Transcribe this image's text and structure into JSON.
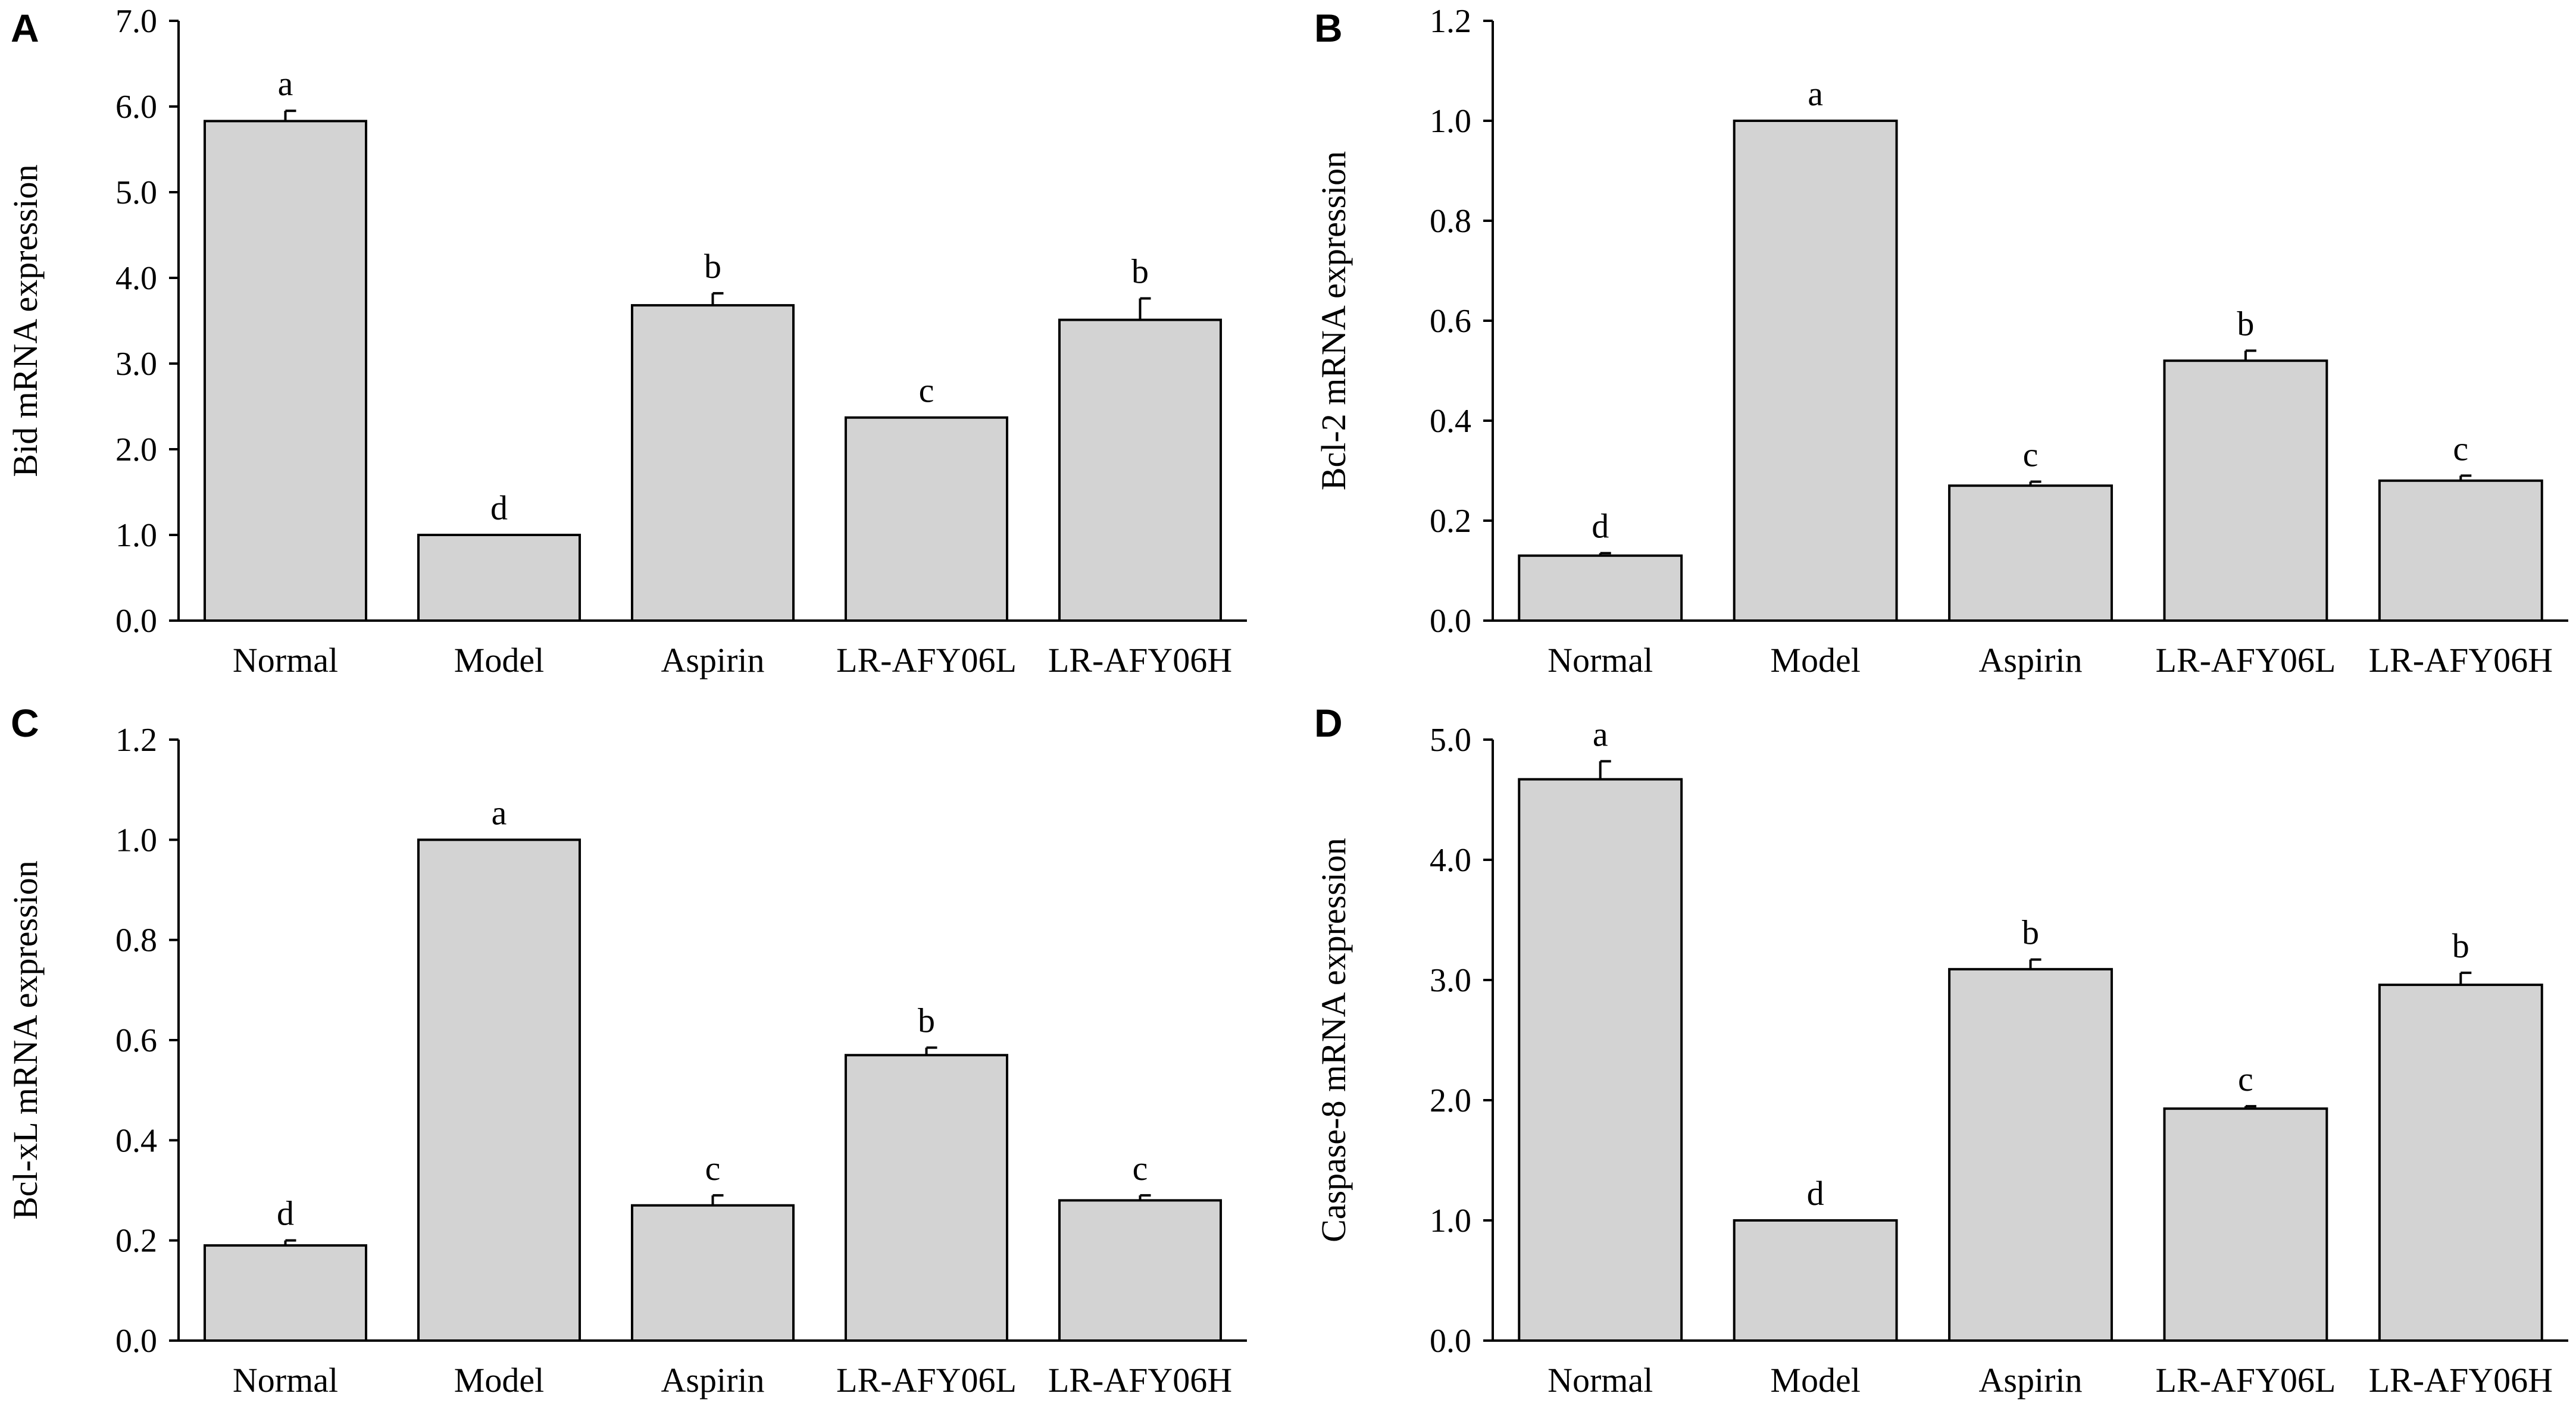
{
  "chart_data": [
    {
      "panel": "A",
      "type": "bar",
      "categories": [
        "Normal",
        "Model",
        "Aspirin",
        "LR-AFY06L",
        "LR-AFY06H"
      ],
      "values": [
        5.83,
        1.0,
        3.68,
        2.37,
        3.51
      ],
      "errors": [
        0.12,
        0.0,
        0.14,
        0.0,
        0.25
      ],
      "letters": [
        "a",
        "d",
        "b",
        "c",
        "b"
      ],
      "ylabel": "Bid mRNA expression",
      "ylim": [
        0,
        7
      ],
      "yticks": [
        "0.0",
        "1.0",
        "2.0",
        "3.0",
        "4.0",
        "5.0",
        "6.0",
        "7.0"
      ]
    },
    {
      "panel": "B",
      "type": "bar",
      "categories": [
        "Normal",
        "Model",
        "Aspirin",
        "LR-AFY06L",
        "LR-AFY06H"
      ],
      "values": [
        0.13,
        1.0,
        0.27,
        0.52,
        0.28
      ],
      "errors": [
        0.005,
        0.0,
        0.008,
        0.02,
        0.01
      ],
      "letters": [
        "d",
        "a",
        "c",
        "b",
        "c"
      ],
      "ylabel": "Bcl-2 mRNA expression",
      "ylim": [
        0,
        1.2
      ],
      "yticks": [
        "0.0",
        "0.2",
        "0.4",
        "0.6",
        "0.8",
        "1.0",
        "1.2"
      ]
    },
    {
      "panel": "C",
      "type": "bar",
      "categories": [
        "Normal",
        "Model",
        "Aspirin",
        "LR-AFY06L",
        "LR-AFY06H"
      ],
      "values": [
        0.19,
        1.0,
        0.27,
        0.57,
        0.28
      ],
      "errors": [
        0.01,
        0.0,
        0.02,
        0.015,
        0.01
      ],
      "letters": [
        "d",
        "a",
        "c",
        "b",
        "c"
      ],
      "ylabel": "Bcl-xL mRNA expression",
      "ylim": [
        0,
        1.2
      ],
      "yticks": [
        "0.0",
        "0.2",
        "0.4",
        "0.6",
        "0.8",
        "1.0",
        "1.2"
      ]
    },
    {
      "panel": "D",
      "type": "bar",
      "categories": [
        "Normal",
        "Model",
        "Aspirin",
        "LR-AFY06L",
        "LR-AFY06H"
      ],
      "values": [
        4.67,
        1.0,
        3.09,
        1.93,
        2.96
      ],
      "errors": [
        0.15,
        0.0,
        0.08,
        0.02,
        0.1
      ],
      "letters": [
        "a",
        "d",
        "b",
        "c",
        "b"
      ],
      "ylabel": "Caspase-8 mRNA expression",
      "ylim": [
        0,
        5
      ],
      "yticks": [
        "0.0",
        "1.0",
        "2.0",
        "3.0",
        "4.0",
        "5.0"
      ]
    }
  ]
}
